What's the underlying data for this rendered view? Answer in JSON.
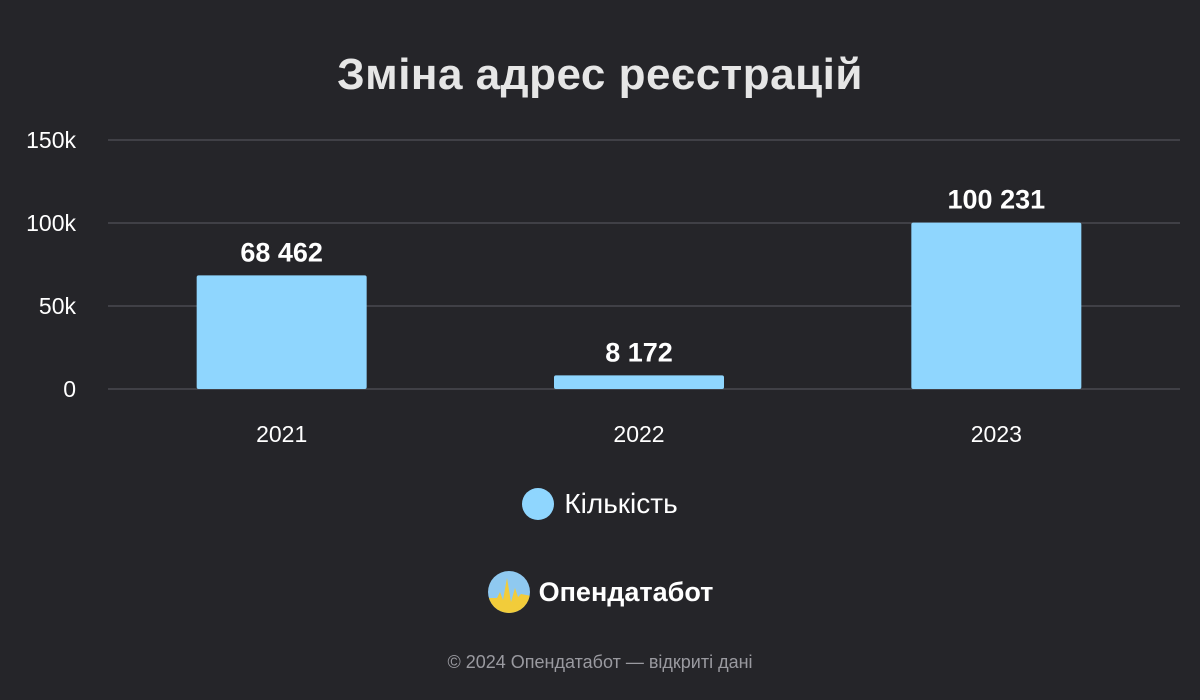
{
  "chart_data": {
    "type": "bar",
    "title": "Зміна адрес реєстрацій",
    "categories": [
      "2021",
      "2022",
      "2023"
    ],
    "series": [
      {
        "name": "Кількість",
        "values": [
          68462,
          8172,
          100231
        ],
        "color": "#8fd6fe"
      }
    ],
    "data_labels": [
      "68 462",
      "8 172",
      "100 231"
    ],
    "y_ticks": [
      0,
      50000,
      100000,
      150000
    ],
    "y_tick_labels": [
      "0",
      "50k",
      "100k",
      "150k"
    ],
    "ylim": [
      0,
      150000
    ],
    "grid": true,
    "legend_position": "bottom-center"
  },
  "branding": {
    "logo_text": "Опендатабот",
    "footer": "© 2024 Опендатабот — відкриті дані"
  },
  "colors": {
    "background": "#252529",
    "bar": "#8fd6fe",
    "grid": "#4a4a50",
    "logo_blue": "#8fc9f0",
    "logo_yellow": "#f2cc3a"
  }
}
